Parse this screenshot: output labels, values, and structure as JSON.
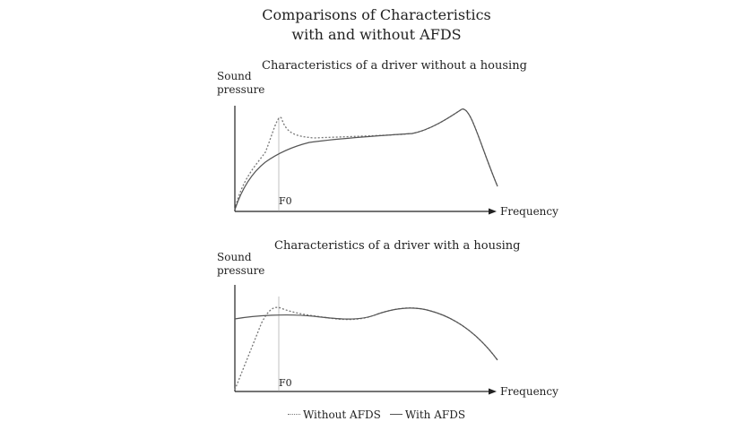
{
  "title_line1": "Comparisons of Characteristics",
  "title_line2": "with and without AFDS",
  "panels": [
    {
      "subtitle": "Characteristics of a driver without a housing",
      "y_label_line1": "Sound",
      "y_label_line2": "pressure",
      "x_label": "Frequency",
      "marker": "F0"
    },
    {
      "subtitle": "Characteristics of a driver with a housing",
      "y_label_line1": "Sound",
      "y_label_line2": "pressure",
      "x_label": "Frequency",
      "marker": "F0"
    }
  ],
  "legend": {
    "without": "Without AFDS",
    "with": "With AFDS"
  },
  "colors": {
    "axis": "#222222",
    "with_curve": "#555555",
    "without_curve": "#777777"
  }
}
